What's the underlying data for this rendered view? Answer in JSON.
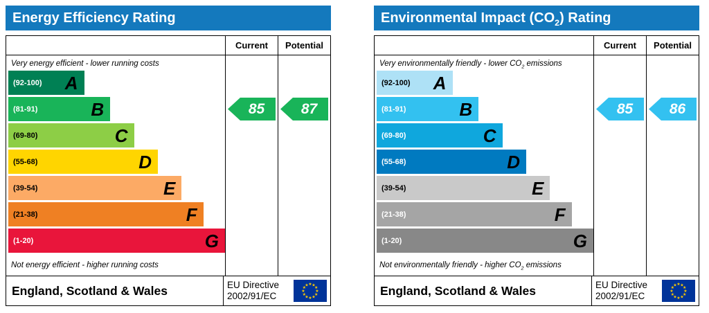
{
  "chart_data": [
    {
      "type": "bar",
      "title": "Energy Efficiency Rating",
      "categories": [
        "A",
        "B",
        "C",
        "D",
        "E",
        "F",
        "G"
      ],
      "band_ranges": [
        "92-100",
        "81-91",
        "69-80",
        "55-68",
        "39-54",
        "21-38",
        "1-20"
      ],
      "band_colors": [
        "#008054",
        "#19b459",
        "#8dce46",
        "#ffd500",
        "#fcaa65",
        "#ef8023",
        "#e9153b"
      ],
      "current": 85,
      "potential": 87,
      "current_band": "B",
      "potential_band": "B",
      "xlabel": "",
      "ylabel": "",
      "top_note": "Very energy efficient - lower running costs",
      "bottom_note": "Not energy efficient - higher running costs",
      "footer": "England, Scotland & Wales",
      "directive": "EU Directive 2002/91/EC"
    },
    {
      "type": "bar",
      "title": "Environmental Impact (CO2) Rating",
      "categories": [
        "A",
        "B",
        "C",
        "D",
        "E",
        "F",
        "G"
      ],
      "band_ranges": [
        "92-100",
        "81-91",
        "69-80",
        "55-68",
        "39-54",
        "21-38",
        "1-20"
      ],
      "band_colors": [
        "#aee1f6",
        "#33c1f0",
        "#0fa7dd",
        "#007ac0",
        "#c9c9c9",
        "#a5a5a5",
        "#888888"
      ],
      "current": 85,
      "potential": 86,
      "current_band": "B",
      "potential_band": "B",
      "xlabel": "",
      "ylabel": "",
      "top_note": "Very environmentally friendly - lower CO2 emissions",
      "bottom_note": "Not environmentally friendly - higher CO2 emissions",
      "footer": "England, Scotland & Wales",
      "directive": "EU Directive 2002/91/EC"
    }
  ],
  "charts": [
    {
      "title": {
        "prefix": "Energy Efficiency Rating",
        "sub": "",
        "suffix": ""
      },
      "title_bg": "#1479bd",
      "columns": {
        "current": "Current",
        "potential": "Potential"
      },
      "top_note": {
        "prefix": "Very energy efficient - lower running costs",
        "sub": "",
        "suffix": ""
      },
      "bottom_note": {
        "prefix": "Not energy efficient - higher running costs",
        "sub": "",
        "suffix": ""
      },
      "bands": [
        {
          "range": "(92-100)",
          "letter": "A",
          "color": "#008054",
          "range_color": "#ffffff"
        },
        {
          "range": "(81-91)",
          "letter": "B",
          "color": "#19b459",
          "range_color": "#ffffff"
        },
        {
          "range": "(69-80)",
          "letter": "C",
          "color": "#8dce46",
          "range_color": "#000000"
        },
        {
          "range": "(55-68)",
          "letter": "D",
          "color": "#ffd500",
          "range_color": "#000000"
        },
        {
          "range": "(39-54)",
          "letter": "E",
          "color": "#fcaa65",
          "range_color": "#000000"
        },
        {
          "range": "(21-38)",
          "letter": "F",
          "color": "#ef8023",
          "range_color": "#000000"
        },
        {
          "range": "(1-20)",
          "letter": "G",
          "color": "#e9153b",
          "range_color": "#ffffff"
        }
      ],
      "current": {
        "value": "85",
        "color": "#19b459"
      },
      "potential": {
        "value": "87",
        "color": "#19b459"
      },
      "footer": {
        "region": "England, Scotland & Wales",
        "directive_line1": "EU Directive",
        "directive_line2": "2002/91/EC",
        "flag_bg": "#003399",
        "star_color": "#ffcc00"
      }
    },
    {
      "title": {
        "prefix": "Environmental Impact (CO",
        "sub": "2",
        "suffix": ") Rating"
      },
      "title_bg": "#1479bd",
      "columns": {
        "current": "Current",
        "potential": "Potential"
      },
      "top_note": {
        "prefix": "Very environmentally friendly - lower CO",
        "sub": "2",
        "suffix": " emissions"
      },
      "bottom_note": {
        "prefix": "Not environmentally friendly - higher CO",
        "sub": "2",
        "suffix": " emissions"
      },
      "bands": [
        {
          "range": "(92-100)",
          "letter": "A",
          "color": "#aee1f6",
          "range_color": "#000000"
        },
        {
          "range": "(81-91)",
          "letter": "B",
          "color": "#33c1f0",
          "range_color": "#ffffff"
        },
        {
          "range": "(69-80)",
          "letter": "C",
          "color": "#0fa7dd",
          "range_color": "#ffffff"
        },
        {
          "range": "(55-68)",
          "letter": "D",
          "color": "#007ac0",
          "range_color": "#ffffff"
        },
        {
          "range": "(39-54)",
          "letter": "E",
          "color": "#c9c9c9",
          "range_color": "#000000"
        },
        {
          "range": "(21-38)",
          "letter": "F",
          "color": "#a5a5a5",
          "range_color": "#ffffff"
        },
        {
          "range": "(1-20)",
          "letter": "G",
          "color": "#888888",
          "range_color": "#ffffff"
        }
      ],
      "current": {
        "value": "85",
        "color": "#33c1f0"
      },
      "potential": {
        "value": "86",
        "color": "#33c1f0"
      },
      "footer": {
        "region": "England, Scotland & Wales",
        "directive_line1": "EU Directive",
        "directive_line2": "2002/91/EC",
        "flag_bg": "#003399",
        "star_color": "#ffcc00"
      }
    }
  ]
}
